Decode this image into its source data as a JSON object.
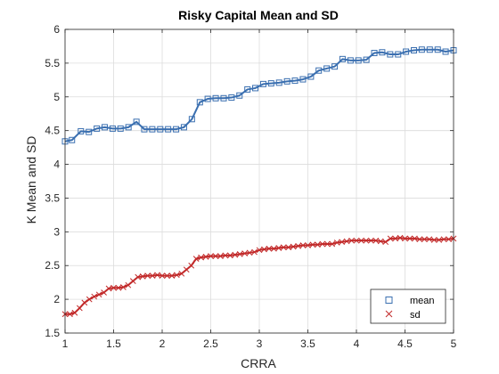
{
  "chart_data": {
    "type": "line",
    "title": "Risky Capital Mean and SD",
    "xlabel": "CRRA",
    "ylabel": "K Mean and SD",
    "xlim": [
      1,
      5
    ],
    "ylim": [
      1.5,
      6
    ],
    "xticks": [
      "1",
      "1.5",
      "2",
      "2.5",
      "3",
      "3.5",
      "4",
      "4.5",
      "5"
    ],
    "yticks": [
      "1.5",
      "2",
      "2.5",
      "3",
      "3.5",
      "4",
      "4.5",
      "5",
      "5.5",
      "6"
    ],
    "grid": true,
    "legend_position": "bottom-right",
    "colors": {
      "mean": "#3a6fb0",
      "sd": "#c22a2a",
      "grid": "#dcdcdc",
      "axis": "#262626"
    },
    "series": [
      {
        "name": "mean",
        "marker": "square",
        "x": [
          1.0,
          1.071,
          1.163,
          1.245,
          1.327,
          1.408,
          1.49,
          1.571,
          1.653,
          1.735,
          1.816,
          1.898,
          1.98,
          2.061,
          2.143,
          2.224,
          2.306,
          2.388,
          2.469,
          2.551,
          2.633,
          2.714,
          2.796,
          2.878,
          2.959,
          3.041,
          3.122,
          3.204,
          3.286,
          3.367,
          3.449,
          3.531,
          3.612,
          3.694,
          3.776,
          3.857,
          3.939,
          4.02,
          4.102,
          4.184,
          4.265,
          4.347,
          4.429,
          4.51,
          4.592,
          4.673,
          4.755,
          4.837,
          4.918,
          5.0
        ],
        "y": [
          4.34,
          4.36,
          4.49,
          4.48,
          4.53,
          4.55,
          4.53,
          4.53,
          4.55,
          4.63,
          4.52,
          4.52,
          4.52,
          4.52,
          4.52,
          4.55,
          4.67,
          4.92,
          4.97,
          4.98,
          4.98,
          4.99,
          5.02,
          5.11,
          5.13,
          5.19,
          5.2,
          5.21,
          5.23,
          5.24,
          5.26,
          5.3,
          5.39,
          5.42,
          5.45,
          5.56,
          5.54,
          5.54,
          5.55,
          5.65,
          5.66,
          5.63,
          5.63,
          5.67,
          5.69,
          5.7,
          5.7,
          5.7,
          5.67,
          5.69
        ]
      },
      {
        "name": "sd",
        "marker": "x",
        "x": [
          1.0,
          1.05,
          1.1,
          1.15,
          1.2,
          1.25,
          1.3,
          1.35,
          1.4,
          1.45,
          1.5,
          1.55,
          1.6,
          1.65,
          1.7,
          1.75,
          1.8,
          1.85,
          1.9,
          1.95,
          2.0,
          2.05,
          2.1,
          2.15,
          2.2,
          2.25,
          2.3,
          2.35,
          2.4,
          2.45,
          2.5,
          2.55,
          2.6,
          2.65,
          2.7,
          2.75,
          2.8,
          2.85,
          2.9,
          2.95,
          3.0,
          3.05,
          3.1,
          3.15,
          3.2,
          3.25,
          3.3,
          3.35,
          3.4,
          3.45,
          3.5,
          3.55,
          3.6,
          3.65,
          3.7,
          3.75,
          3.8,
          3.85,
          3.9,
          3.95,
          4.0,
          4.05,
          4.1,
          4.15,
          4.2,
          4.25,
          4.3,
          4.35,
          4.4,
          4.45,
          4.5,
          4.55,
          4.6,
          4.65,
          4.7,
          4.75,
          4.8,
          4.85,
          4.9,
          4.95,
          5.0
        ],
        "y": [
          1.78,
          1.78,
          1.8,
          1.87,
          1.95,
          2.0,
          2.04,
          2.07,
          2.1,
          2.16,
          2.17,
          2.17,
          2.18,
          2.21,
          2.27,
          2.33,
          2.34,
          2.35,
          2.35,
          2.36,
          2.35,
          2.35,
          2.35,
          2.36,
          2.38,
          2.44,
          2.5,
          2.6,
          2.62,
          2.63,
          2.64,
          2.64,
          2.64,
          2.65,
          2.65,
          2.66,
          2.67,
          2.68,
          2.69,
          2.7,
          2.73,
          2.74,
          2.75,
          2.75,
          2.76,
          2.77,
          2.77,
          2.78,
          2.79,
          2.8,
          2.8,
          2.81,
          2.81,
          2.82,
          2.82,
          2.82,
          2.84,
          2.85,
          2.86,
          2.87,
          2.87,
          2.87,
          2.87,
          2.87,
          2.87,
          2.86,
          2.85,
          2.9,
          2.9,
          2.91,
          2.9,
          2.9,
          2.9,
          2.89,
          2.89,
          2.89,
          2.88,
          2.88,
          2.89,
          2.89,
          2.9
        ]
      }
    ]
  }
}
